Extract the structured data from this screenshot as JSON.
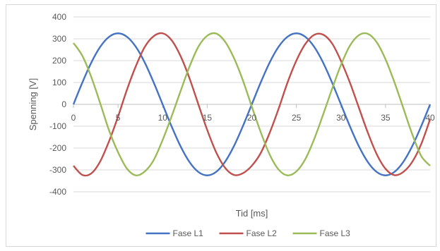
{
  "chart_data": {
    "type": "line",
    "title": "",
    "xlabel": "Tid [ms]",
    "ylabel": "Spenning [V]",
    "xlim": [
      0,
      40
    ],
    "ylim": [
      -400,
      400
    ],
    "x_ticks": [
      0,
      5,
      10,
      15,
      20,
      25,
      30,
      35,
      40
    ],
    "y_ticks": [
      400,
      300,
      200,
      100,
      0,
      -100,
      -200,
      -300,
      -400
    ],
    "grid": "horizontal",
    "legend_position": "bottom",
    "series": [
      {
        "name": "Fase L1",
        "color": "#4472c4",
        "x": [
          0,
          1,
          2,
          3,
          4,
          5,
          6,
          7,
          8,
          9,
          10,
          11,
          12,
          13,
          14,
          15,
          16,
          17,
          18,
          19,
          20,
          21,
          22,
          23,
          24,
          25,
          26,
          27,
          28,
          29,
          30,
          31,
          32,
          33,
          34,
          35,
          36,
          37,
          38,
          39,
          40
        ],
        "y": [
          0,
          100,
          191,
          263,
          309,
          325,
          309,
          263,
          191,
          100,
          0,
          -100,
          -191,
          -263,
          -309,
          -325,
          -309,
          -263,
          -191,
          -100,
          0,
          100,
          191,
          263,
          309,
          325,
          309,
          263,
          191,
          100,
          0,
          -100,
          -191,
          -263,
          -309,
          -325,
          -309,
          -263,
          -191,
          -100,
          0
        ]
      },
      {
        "name": "Fase L2",
        "color": "#c0504d",
        "x": [
          0,
          1,
          2,
          3,
          4,
          5,
          6,
          7,
          8,
          9,
          10,
          11,
          12,
          13,
          14,
          15,
          16,
          17,
          18,
          19,
          20,
          21,
          22,
          23,
          24,
          25,
          26,
          27,
          28,
          29,
          30,
          31,
          32,
          33,
          34,
          35,
          36,
          37,
          38,
          39,
          40
        ],
        "y": [
          -281,
          -323,
          -316,
          -261,
          -168,
          -56,
          67,
          175,
          263,
          312,
          325,
          294,
          222,
          121,
          1,
          -117,
          -219,
          -290,
          -323,
          -315,
          -281,
          -223,
          -131,
          -21,
          99,
          200,
          276,
          318,
          319,
          279,
          199,
          100,
          -14,
          -128,
          -227,
          -295,
          -324,
          -309,
          -263,
          -182,
          -68
        ]
      },
      {
        "name": "Fase L3",
        "color": "#9bbb59",
        "x": [
          0,
          1,
          2,
          3,
          4,
          5,
          6,
          7,
          8,
          9,
          10,
          11,
          12,
          13,
          14,
          15,
          16,
          17,
          18,
          19,
          20,
          21,
          22,
          23,
          24,
          25,
          26,
          27,
          28,
          29,
          30,
          31,
          32,
          33,
          34,
          35,
          36,
          37,
          38,
          39,
          40
        ],
        "y": [
          281,
          222,
          125,
          5,
          -120,
          -219,
          -294,
          -325,
          -307,
          -255,
          -163,
          -56,
          59,
          171,
          263,
          314,
          324,
          287,
          212,
          110,
          -10,
          -127,
          -229,
          -298,
          -325,
          -307,
          -251,
          -159,
          -47,
          70,
          180,
          268,
          316,
          323,
          285,
          206,
          101,
          -18,
          -137,
          -236,
          -281
        ]
      }
    ]
  }
}
